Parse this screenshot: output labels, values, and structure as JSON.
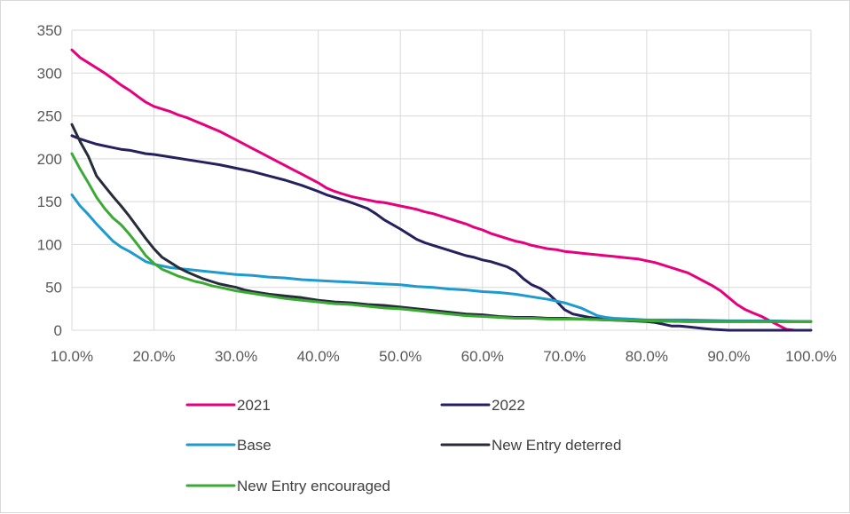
{
  "chart_data": {
    "type": "line",
    "title": "",
    "xlabel": "",
    "ylabel": "",
    "xlim": [
      0.1,
      1.0
    ],
    "ylim": [
      0,
      350
    ],
    "x_ticks": [
      0.1,
      0.2,
      0.3,
      0.4,
      0.5,
      0.6,
      0.7,
      0.8,
      0.9,
      1.0
    ],
    "x_tick_labels": [
      "10.0%",
      "20.0%",
      "30.0%",
      "40.0%",
      "50.0%",
      "60.0%",
      "70.0%",
      "80.0%",
      "90.0%",
      "100.0%"
    ],
    "y_ticks": [
      0,
      50,
      100,
      150,
      200,
      250,
      300,
      350
    ],
    "y_tick_labels": [
      "0",
      "50",
      "100",
      "150",
      "200",
      "250",
      "300",
      "350"
    ],
    "grid": "vertical and horizontal",
    "legend_position": "bottom",
    "series": [
      {
        "name": "2021",
        "color": "#E6007E",
        "points": [
          [
            0.1,
            327
          ],
          [
            0.11,
            318
          ],
          [
            0.12,
            312
          ],
          [
            0.13,
            306
          ],
          [
            0.14,
            300
          ],
          [
            0.15,
            293
          ],
          [
            0.16,
            286
          ],
          [
            0.17,
            280
          ],
          [
            0.18,
            273
          ],
          [
            0.19,
            266
          ],
          [
            0.2,
            261
          ],
          [
            0.21,
            258
          ],
          [
            0.22,
            255
          ],
          [
            0.23,
            251
          ],
          [
            0.24,
            248
          ],
          [
            0.25,
            244
          ],
          [
            0.26,
            240
          ],
          [
            0.27,
            236
          ],
          [
            0.28,
            232
          ],
          [
            0.29,
            227
          ],
          [
            0.3,
            222
          ],
          [
            0.31,
            217
          ],
          [
            0.32,
            212
          ],
          [
            0.33,
            207
          ],
          [
            0.34,
            202
          ],
          [
            0.35,
            197
          ],
          [
            0.36,
            192
          ],
          [
            0.37,
            187
          ],
          [
            0.38,
            182
          ],
          [
            0.39,
            177
          ],
          [
            0.4,
            172
          ],
          [
            0.41,
            166
          ],
          [
            0.42,
            162
          ],
          [
            0.43,
            159
          ],
          [
            0.44,
            156
          ],
          [
            0.45,
            154
          ],
          [
            0.46,
            152
          ],
          [
            0.47,
            150
          ],
          [
            0.48,
            149
          ],
          [
            0.49,
            147
          ],
          [
            0.5,
            145
          ],
          [
            0.51,
            143
          ],
          [
            0.52,
            141
          ],
          [
            0.53,
            138
          ],
          [
            0.54,
            136
          ],
          [
            0.55,
            133
          ],
          [
            0.56,
            130
          ],
          [
            0.57,
            127
          ],
          [
            0.58,
            124
          ],
          [
            0.59,
            120
          ],
          [
            0.6,
            117
          ],
          [
            0.61,
            113
          ],
          [
            0.62,
            110
          ],
          [
            0.63,
            107
          ],
          [
            0.64,
            104
          ],
          [
            0.65,
            102
          ],
          [
            0.66,
            99
          ],
          [
            0.67,
            97
          ],
          [
            0.68,
            95
          ],
          [
            0.69,
            94
          ],
          [
            0.7,
            92
          ],
          [
            0.71,
            91
          ],
          [
            0.72,
            90
          ],
          [
            0.73,
            89
          ],
          [
            0.74,
            88
          ],
          [
            0.75,
            87
          ],
          [
            0.76,
            86
          ],
          [
            0.77,
            85
          ],
          [
            0.78,
            84
          ],
          [
            0.79,
            83
          ],
          [
            0.8,
            81
          ],
          [
            0.81,
            79
          ],
          [
            0.82,
            76
          ],
          [
            0.83,
            73
          ],
          [
            0.84,
            70
          ],
          [
            0.85,
            67
          ],
          [
            0.86,
            62
          ],
          [
            0.87,
            57
          ],
          [
            0.88,
            52
          ],
          [
            0.89,
            46
          ],
          [
            0.9,
            38
          ],
          [
            0.91,
            30
          ],
          [
            0.92,
            24
          ],
          [
            0.93,
            20
          ],
          [
            0.94,
            16
          ],
          [
            0.95,
            11
          ],
          [
            0.96,
            6
          ],
          [
            0.97,
            1
          ],
          [
            0.98,
            0
          ]
        ]
      },
      {
        "name": "2022",
        "color": "#25205E",
        "points": [
          [
            0.1,
            227
          ],
          [
            0.11,
            223
          ],
          [
            0.12,
            220
          ],
          [
            0.13,
            217
          ],
          [
            0.14,
            215
          ],
          [
            0.15,
            213
          ],
          [
            0.16,
            211
          ],
          [
            0.17,
            210
          ],
          [
            0.18,
            208
          ],
          [
            0.19,
            206
          ],
          [
            0.2,
            205
          ],
          [
            0.22,
            202
          ],
          [
            0.24,
            199
          ],
          [
            0.26,
            196
          ],
          [
            0.28,
            193
          ],
          [
            0.3,
            189
          ],
          [
            0.31,
            187
          ],
          [
            0.32,
            185
          ],
          [
            0.34,
            180
          ],
          [
            0.36,
            175
          ],
          [
            0.38,
            169
          ],
          [
            0.4,
            162
          ],
          [
            0.41,
            158
          ],
          [
            0.42,
            155
          ],
          [
            0.44,
            149
          ],
          [
            0.46,
            142
          ],
          [
            0.47,
            136
          ],
          [
            0.48,
            129
          ],
          [
            0.5,
            118
          ],
          [
            0.51,
            112
          ],
          [
            0.52,
            106
          ],
          [
            0.53,
            102
          ],
          [
            0.54,
            99
          ],
          [
            0.55,
            96
          ],
          [
            0.56,
            93
          ],
          [
            0.57,
            90
          ],
          [
            0.58,
            87
          ],
          [
            0.59,
            85
          ],
          [
            0.6,
            82
          ],
          [
            0.61,
            80
          ],
          [
            0.62,
            77
          ],
          [
            0.63,
            74
          ],
          [
            0.64,
            69
          ],
          [
            0.65,
            60
          ],
          [
            0.66,
            53
          ],
          [
            0.67,
            49
          ],
          [
            0.68,
            43
          ],
          [
            0.69,
            34
          ],
          [
            0.7,
            24
          ],
          [
            0.71,
            19
          ],
          [
            0.72,
            17
          ],
          [
            0.73,
            15
          ],
          [
            0.74,
            14
          ],
          [
            0.75,
            13
          ],
          [
            0.76,
            12
          ],
          [
            0.78,
            11
          ],
          [
            0.8,
            10
          ],
          [
            0.81,
            9
          ],
          [
            0.82,
            7
          ],
          [
            0.83,
            5
          ],
          [
            0.84,
            5
          ],
          [
            0.85,
            4
          ],
          [
            0.86,
            3
          ],
          [
            0.87,
            2
          ],
          [
            0.88,
            1
          ],
          [
            0.9,
            0
          ],
          [
            0.95,
            0
          ],
          [
            1.0,
            0
          ]
        ]
      },
      {
        "name": "Base",
        "color": "#1E9ACF",
        "points": [
          [
            0.1,
            158
          ],
          [
            0.11,
            145
          ],
          [
            0.12,
            135
          ],
          [
            0.13,
            124
          ],
          [
            0.14,
            114
          ],
          [
            0.15,
            104
          ],
          [
            0.16,
            97
          ],
          [
            0.17,
            92
          ],
          [
            0.18,
            86
          ],
          [
            0.19,
            80
          ],
          [
            0.2,
            77
          ],
          [
            0.21,
            75
          ],
          [
            0.22,
            73
          ],
          [
            0.23,
            72
          ],
          [
            0.24,
            71
          ],
          [
            0.25,
            70
          ],
          [
            0.26,
            69
          ],
          [
            0.28,
            67
          ],
          [
            0.3,
            65
          ],
          [
            0.32,
            64
          ],
          [
            0.34,
            62
          ],
          [
            0.36,
            61
          ],
          [
            0.38,
            59
          ],
          [
            0.4,
            58
          ],
          [
            0.42,
            57
          ],
          [
            0.44,
            56
          ],
          [
            0.46,
            55
          ],
          [
            0.48,
            54
          ],
          [
            0.5,
            53
          ],
          [
            0.52,
            51
          ],
          [
            0.54,
            50
          ],
          [
            0.56,
            48
          ],
          [
            0.58,
            47
          ],
          [
            0.6,
            45
          ],
          [
            0.62,
            44
          ],
          [
            0.64,
            42
          ],
          [
            0.66,
            39
          ],
          [
            0.68,
            36
          ],
          [
            0.7,
            32
          ],
          [
            0.72,
            26
          ],
          [
            0.74,
            17
          ],
          [
            0.75,
            15
          ],
          [
            0.76,
            14
          ],
          [
            0.78,
            13
          ],
          [
            0.8,
            12
          ],
          [
            0.85,
            12
          ],
          [
            0.9,
            11
          ],
          [
            0.95,
            11
          ],
          [
            1.0,
            10
          ]
        ]
      },
      {
        "name": "New Entry deterred",
        "color": "#262C3A",
        "points": [
          [
            0.1,
            240
          ],
          [
            0.11,
            220
          ],
          [
            0.12,
            203
          ],
          [
            0.13,
            180
          ],
          [
            0.14,
            168
          ],
          [
            0.15,
            156
          ],
          [
            0.16,
            145
          ],
          [
            0.17,
            133
          ],
          [
            0.18,
            120
          ],
          [
            0.19,
            107
          ],
          [
            0.2,
            95
          ],
          [
            0.21,
            85
          ],
          [
            0.22,
            79
          ],
          [
            0.23,
            73
          ],
          [
            0.24,
            68
          ],
          [
            0.25,
            64
          ],
          [
            0.26,
            60
          ],
          [
            0.27,
            57
          ],
          [
            0.28,
            54
          ],
          [
            0.29,
            52
          ],
          [
            0.3,
            50
          ],
          [
            0.31,
            47
          ],
          [
            0.32,
            45
          ],
          [
            0.34,
            42
          ],
          [
            0.36,
            40
          ],
          [
            0.38,
            38
          ],
          [
            0.4,
            35
          ],
          [
            0.42,
            33
          ],
          [
            0.44,
            32
          ],
          [
            0.46,
            30
          ],
          [
            0.48,
            29
          ],
          [
            0.5,
            27
          ],
          [
            0.52,
            25
          ],
          [
            0.54,
            23
          ],
          [
            0.56,
            21
          ],
          [
            0.58,
            19
          ],
          [
            0.6,
            18
          ],
          [
            0.62,
            16
          ],
          [
            0.64,
            15
          ],
          [
            0.66,
            15
          ],
          [
            0.68,
            14
          ],
          [
            0.7,
            14
          ],
          [
            0.72,
            13
          ],
          [
            0.75,
            12
          ],
          [
            0.78,
            11
          ],
          [
            0.8,
            11
          ],
          [
            0.85,
            10
          ],
          [
            0.9,
            10
          ],
          [
            0.95,
            10
          ],
          [
            1.0,
            10
          ]
        ]
      },
      {
        "name": "New Entry encouraged",
        "color": "#3BAA35",
        "points": [
          [
            0.1,
            206
          ],
          [
            0.11,
            188
          ],
          [
            0.12,
            172
          ],
          [
            0.13,
            155
          ],
          [
            0.14,
            142
          ],
          [
            0.15,
            131
          ],
          [
            0.16,
            123
          ],
          [
            0.17,
            112
          ],
          [
            0.18,
            100
          ],
          [
            0.19,
            87
          ],
          [
            0.2,
            78
          ],
          [
            0.21,
            71
          ],
          [
            0.22,
            67
          ],
          [
            0.23,
            63
          ],
          [
            0.24,
            60
          ],
          [
            0.25,
            57
          ],
          [
            0.26,
            55
          ],
          [
            0.27,
            52
          ],
          [
            0.28,
            50
          ],
          [
            0.29,
            48
          ],
          [
            0.3,
            46
          ],
          [
            0.32,
            43
          ],
          [
            0.34,
            40
          ],
          [
            0.36,
            37
          ],
          [
            0.38,
            35
          ],
          [
            0.4,
            33
          ],
          [
            0.42,
            31
          ],
          [
            0.44,
            30
          ],
          [
            0.46,
            28
          ],
          [
            0.48,
            26
          ],
          [
            0.5,
            25
          ],
          [
            0.52,
            23
          ],
          [
            0.54,
            21
          ],
          [
            0.56,
            19
          ],
          [
            0.58,
            17
          ],
          [
            0.6,
            16
          ],
          [
            0.62,
            15
          ],
          [
            0.64,
            14
          ],
          [
            0.66,
            14
          ],
          [
            0.68,
            13
          ],
          [
            0.7,
            13
          ],
          [
            0.72,
            13
          ],
          [
            0.75,
            12
          ],
          [
            0.8,
            11
          ],
          [
            0.85,
            10
          ],
          [
            0.9,
            10
          ],
          [
            0.95,
            10
          ],
          [
            1.0,
            10
          ]
        ]
      }
    ]
  }
}
